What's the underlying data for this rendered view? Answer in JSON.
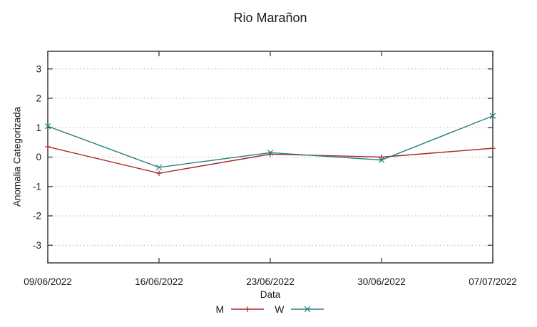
{
  "title": "Rio Marañon",
  "chart_data": {
    "type": "line",
    "title": "Rio Marañon",
    "xlabel": "Data",
    "ylabel": "Anomalia Categorizada",
    "categories": [
      "09/06/2022",
      "16/06/2022",
      "23/06/2022",
      "30/06/2022",
      "07/07/2022"
    ],
    "series": [
      {
        "name": "M",
        "color": "#a62929",
        "marker": "plus",
        "values": [
          0.35,
          -0.55,
          0.1,
          0.0,
          0.3
        ]
      },
      {
        "name": "W",
        "color": "#268080",
        "marker": "cross",
        "values": [
          1.05,
          -0.35,
          0.15,
          -0.1,
          1.4
        ]
      }
    ],
    "yticks": [
      3,
      2,
      1,
      0,
      -1,
      -2,
      -3
    ],
    "ylim": [
      -3.6,
      3.6
    ],
    "grid": "horizontal-dotted",
    "legend_position": "below-plot",
    "colors": {
      "border": "#3a3a3a",
      "grid": "#b0b0b0",
      "text": "#1a1a1a",
      "background": "#ffffff"
    }
  }
}
